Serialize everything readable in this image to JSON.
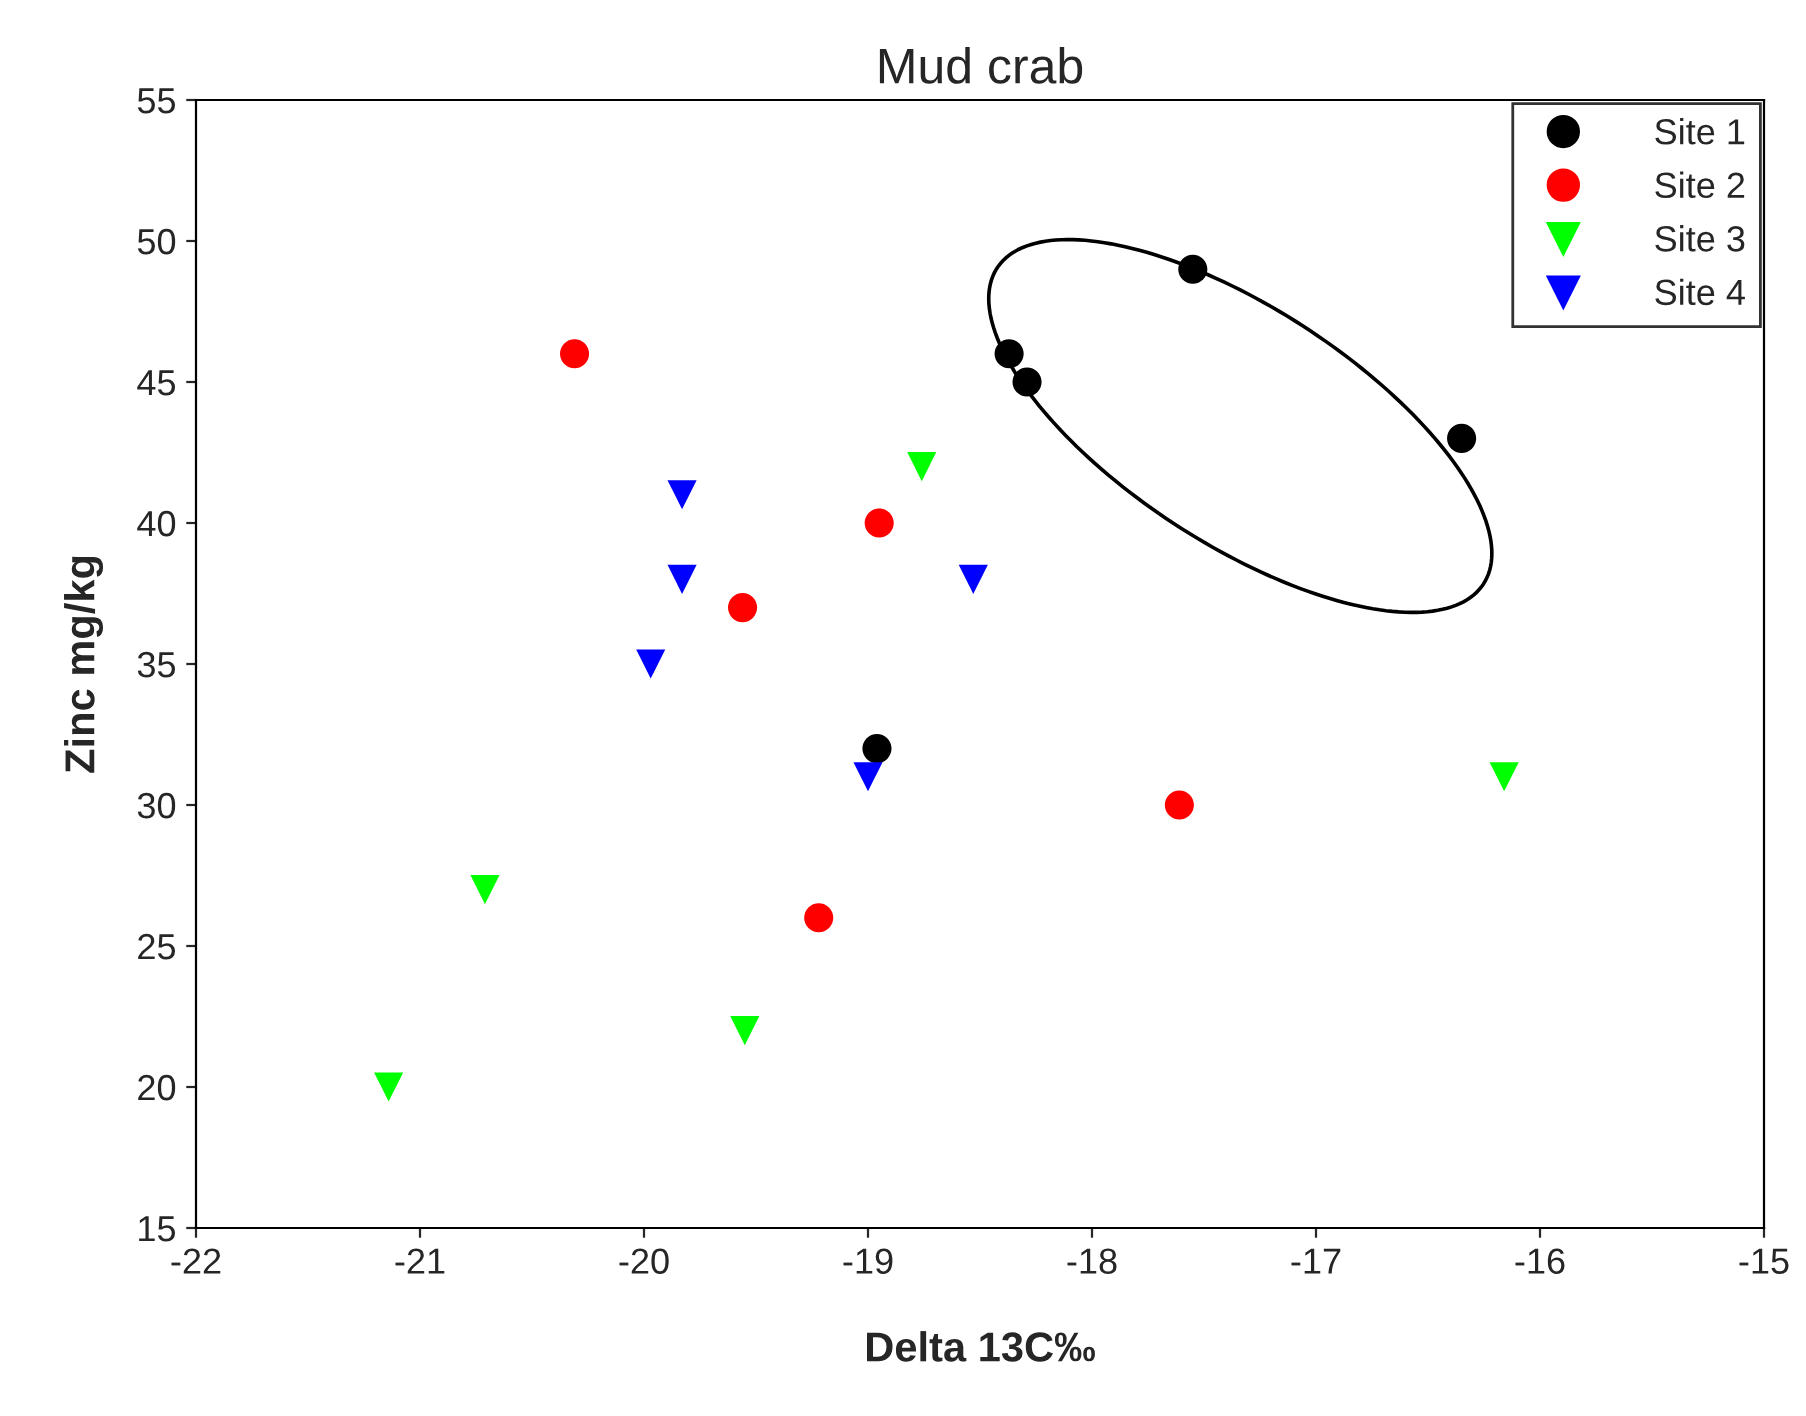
{
  "chart_data": {
    "type": "scatter",
    "title": "Mud crab",
    "xlabel": "Delta 13C‰",
    "ylabel": "Zinc mg/kg",
    "xlim": [
      -22,
      -15
    ],
    "xticks": [
      -22,
      -21,
      -20,
      -19,
      -18,
      -17,
      -16,
      -15
    ],
    "ylim": [
      15,
      55
    ],
    "yticks": [
      15,
      20,
      25,
      30,
      35,
      40,
      45,
      50,
      55
    ],
    "grid": false,
    "legend": "top right",
    "series": [
      {
        "name": "Site 1",
        "color": "#000000",
        "marker": "circle",
        "x": [
          -18.37,
          -18.29,
          -17.55,
          -16.35,
          -18.96
        ],
        "values": [
          46,
          45,
          49,
          43,
          32
        ]
      },
      {
        "name": "Site 2",
        "color": "#ff0000",
        "marker": "circle",
        "x": [
          -20.31,
          -19.56,
          -18.95,
          -19.22,
          -17.61
        ],
        "values": [
          46,
          37,
          40,
          26,
          30
        ]
      },
      {
        "name": "Site 3",
        "color": "#00ff00",
        "marker": "triangle",
        "x": [
          -18.76,
          -20.71,
          -21.14,
          -19.55,
          -16.16
        ],
        "values": [
          42,
          27,
          20,
          22,
          31
        ]
      },
      {
        "name": "Site 4",
        "color": "#0000ff",
        "marker": "triangle",
        "x": [
          -19.83,
          -19.83,
          -19.97,
          -19.0,
          -18.53
        ],
        "values": [
          41,
          38,
          35,
          31,
          38
        ]
      }
    ]
  }
}
